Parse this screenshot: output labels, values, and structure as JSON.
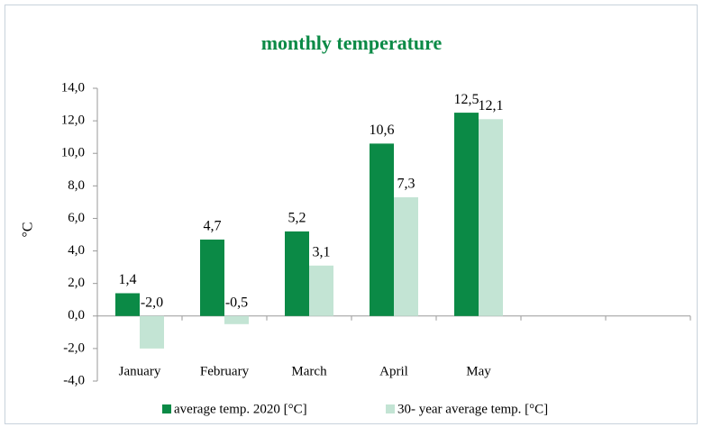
{
  "chart_data": {
    "type": "bar",
    "title": "monthly temperature",
    "ylabel": "°C",
    "categories": [
      "January",
      "February",
      "March",
      "April",
      "May",
      null,
      null
    ],
    "series": [
      {
        "name": "average temp. 2020 [°C]",
        "color": "#0b8a46",
        "values": [
          1.4,
          4.7,
          5.2,
          10.6,
          12.5,
          null,
          null
        ],
        "value_labels": [
          "1,4",
          "4,7",
          "5,2",
          "10,6",
          "12,5",
          null,
          null
        ]
      },
      {
        "name": "30- year average temp. [°C]",
        "color": "#c3e4d4",
        "values": [
          -2.0,
          -0.5,
          3.1,
          7.3,
          12.1,
          null,
          null
        ],
        "value_labels": [
          "-2,0",
          "-0,5",
          "3,1",
          "7,3",
          "12,1",
          null,
          null
        ]
      }
    ],
    "ylim": [
      -4,
      14
    ],
    "yticks": [
      {
        "value": -4,
        "label": "-4,0"
      },
      {
        "value": -2,
        "label": "-2,0"
      },
      {
        "value": 0,
        "label": "0,0"
      },
      {
        "value": 2,
        "label": "2,0"
      },
      {
        "value": 4,
        "label": "4,0"
      },
      {
        "value": 6,
        "label": "6,0"
      },
      {
        "value": 8,
        "label": "8,0"
      },
      {
        "value": 10,
        "label": "10,0"
      },
      {
        "value": 12,
        "label": "12,0"
      },
      {
        "value": 14,
        "label": "14,0"
      }
    ],
    "grid": false,
    "legend": "bottom"
  }
}
